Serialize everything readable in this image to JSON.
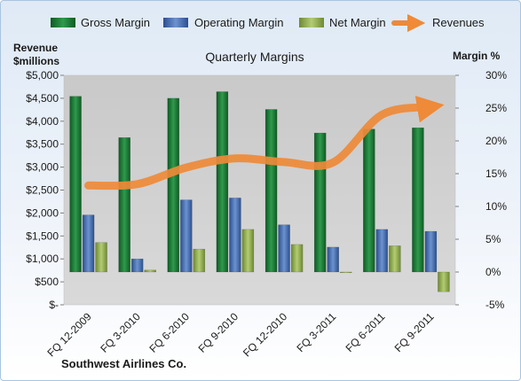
{
  "chart_data": {
    "type": "bar",
    "title": "Quarterly Margins",
    "company": "Southwest Airlines Co.",
    "categories": [
      "FQ 12-2009",
      "FQ 3-2010",
      "FQ 6-2010",
      "FQ 9-2010",
      "FQ 12-2010",
      "FQ 3-2011",
      "FQ 6-2011",
      "FQ 9-2011"
    ],
    "y_left": {
      "label_line1": "Revenue",
      "label_line2": "$millions",
      "range": [
        0,
        5000
      ],
      "ticks": [
        0,
        500,
        1000,
        1500,
        2000,
        2500,
        3000,
        3500,
        4000,
        4500,
        5000
      ],
      "tick_labels": [
        "$-",
        "$500",
        "$1,000",
        "$1,500",
        "$2,000",
        "$2,500",
        "$3,000",
        "$3,500",
        "$4,000",
        "$4,500",
        "$5,000"
      ]
    },
    "y_right": {
      "label": "Margin %",
      "range": [
        -5,
        30
      ],
      "ticks": [
        -5,
        0,
        5,
        10,
        15,
        20,
        25,
        30
      ],
      "tick_labels": [
        "-5%",
        "0%",
        "5%",
        "10%",
        "15%",
        "20%",
        "25%",
        "30%"
      ]
    },
    "legend_position": "top",
    "grid": false,
    "series": [
      {
        "name": "Gross Margin",
        "axis": "right",
        "kind": "bar",
        "color": "#1e7a3a",
        "values": [
          26.8,
          20.5,
          26.5,
          27.5,
          24.8,
          21.2,
          21.8,
          22.0
        ]
      },
      {
        "name": "Operating Margin",
        "axis": "right",
        "kind": "bar",
        "color": "#4a74b6",
        "values": [
          8.7,
          2.0,
          11.0,
          11.3,
          7.2,
          3.8,
          6.5,
          6.2
        ]
      },
      {
        "name": "Net Margin",
        "axis": "right",
        "kind": "bar",
        "color": "#93b153",
        "values": [
          4.5,
          0.3,
          3.5,
          6.5,
          4.2,
          0.0,
          4.0,
          -3.0
        ]
      },
      {
        "name": "Revenues",
        "axis": "left",
        "kind": "line",
        "color": "#ee8a38",
        "values": [
          2600,
          2630,
          2990,
          3190,
          3110,
          3100,
          4140,
          4310
        ]
      }
    ]
  }
}
